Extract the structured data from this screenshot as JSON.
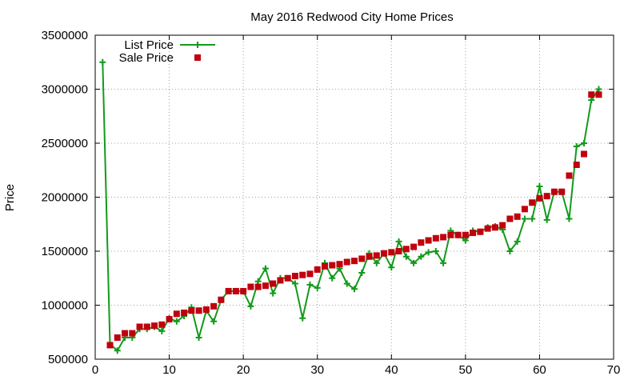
{
  "chart_data": {
    "type": "line",
    "title": "May 2016 Redwood City Home Prices",
    "xlabel": "",
    "ylabel": "Price",
    "xlim": [
      0,
      70
    ],
    "ylim": [
      500000,
      3500000
    ],
    "x_ticks": [
      0,
      10,
      20,
      30,
      40,
      50,
      60,
      70
    ],
    "y_ticks": [
      500000,
      1000000,
      1500000,
      2000000,
      2500000,
      3000000,
      3500000
    ],
    "x_tick_labels": [
      "0",
      "10",
      "20",
      "30",
      "40",
      "50",
      "60",
      "70"
    ],
    "y_tick_labels": [
      "500000",
      "1000000",
      "1500000",
      "2000000",
      "2500000",
      "3000000",
      "3500000"
    ],
    "grid": true,
    "legend_position": "top-left",
    "series": [
      {
        "name": "List Price",
        "style": "line-with-plus-markers",
        "color": "#139a1b",
        "x": [
          1,
          2,
          3,
          4,
          5,
          6,
          7,
          8,
          9,
          10,
          11,
          12,
          13,
          14,
          15,
          16,
          17,
          18,
          19,
          20,
          21,
          22,
          23,
          24,
          25,
          26,
          27,
          28,
          29,
          30,
          31,
          32,
          33,
          34,
          35,
          36,
          37,
          38,
          39,
          40,
          41,
          42,
          43,
          44,
          45,
          46,
          47,
          48,
          49,
          50,
          51,
          52,
          53,
          54,
          55,
          56,
          57,
          58,
          59,
          60,
          61,
          62,
          63,
          64,
          65,
          66,
          67,
          68
        ],
        "values": [
          3250000,
          640000,
          580000,
          700000,
          700000,
          780000,
          780000,
          800000,
          760000,
          880000,
          850000,
          900000,
          980000,
          700000,
          950000,
          850000,
          1050000,
          1130000,
          1130000,
          1130000,
          990000,
          1220000,
          1340000,
          1110000,
          1250000,
          1250000,
          1200000,
          880000,
          1190000,
          1160000,
          1390000,
          1250000,
          1340000,
          1200000,
          1150000,
          1300000,
          1480000,
          1390000,
          1480000,
          1350000,
          1590000,
          1450000,
          1390000,
          1450000,
          1490000,
          1500000,
          1390000,
          1690000,
          1650000,
          1600000,
          1690000,
          1680000,
          1720000,
          1730000,
          1700000,
          1500000,
          1590000,
          1800000,
          1800000,
          2100000,
          1790000,
          2050000,
          2050000,
          1800000,
          2470000,
          2500000,
          2900000,
          3000000
        ]
      },
      {
        "name": "Sale Price",
        "style": "square-markers",
        "color": "#c0000d",
        "x": [
          2,
          3,
          4,
          5,
          6,
          7,
          8,
          9,
          10,
          11,
          12,
          13,
          14,
          15,
          16,
          17,
          18,
          19,
          20,
          21,
          22,
          23,
          24,
          25,
          26,
          27,
          28,
          29,
          30,
          31,
          32,
          33,
          34,
          35,
          36,
          37,
          38,
          39,
          40,
          41,
          42,
          43,
          44,
          45,
          46,
          47,
          48,
          49,
          50,
          51,
          52,
          53,
          54,
          55,
          56,
          57,
          58,
          59,
          60,
          61,
          62,
          63,
          64,
          65,
          66,
          67,
          68
        ],
        "values": [
          630000,
          700000,
          740000,
          740000,
          800000,
          800000,
          810000,
          820000,
          870000,
          920000,
          930000,
          950000,
          950000,
          960000,
          990000,
          1050000,
          1130000,
          1130000,
          1130000,
          1170000,
          1170000,
          1180000,
          1200000,
          1230000,
          1250000,
          1270000,
          1280000,
          1290000,
          1330000,
          1360000,
          1370000,
          1380000,
          1400000,
          1410000,
          1430000,
          1450000,
          1460000,
          1480000,
          1490000,
          1500000,
          1520000,
          1540000,
          1580000,
          1600000,
          1620000,
          1630000,
          1650000,
          1650000,
          1650000,
          1670000,
          1680000,
          1710000,
          1720000,
          1740000,
          1800000,
          1820000,
          1890000,
          1950000,
          1990000,
          2010000,
          2050000,
          2050000,
          2200000,
          2300000,
          2400000,
          2950000,
          2950000
        ]
      }
    ]
  }
}
